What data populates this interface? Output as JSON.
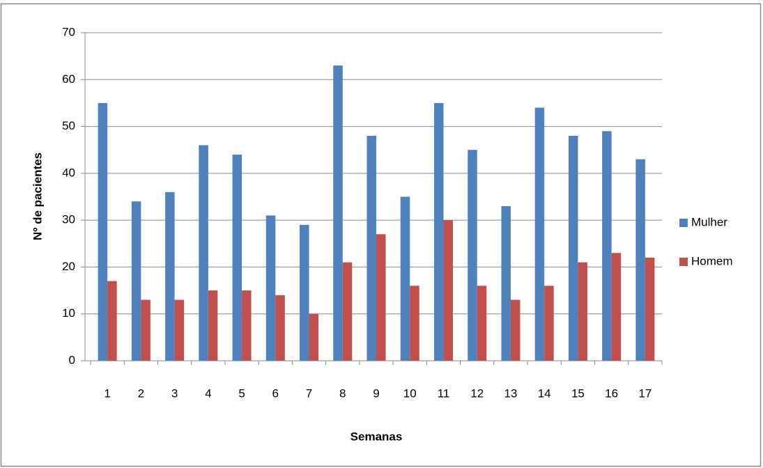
{
  "chart_data": {
    "type": "bar",
    "x_label": "Semanas",
    "y_label": "Nº de pacientes",
    "categories": [
      "1",
      "2",
      "3",
      "4",
      "5",
      "6",
      "7",
      "8",
      "9",
      "10",
      "11",
      "12",
      "13",
      "14",
      "15",
      "16",
      "17"
    ],
    "series": [
      {
        "name": "Mulher",
        "color": "#4F81BD",
        "values": [
          55,
          34,
          36,
          46,
          44,
          31,
          29,
          63,
          48,
          35,
          55,
          45,
          33,
          54,
          48,
          49,
          43
        ]
      },
      {
        "name": "Homem",
        "color": "#C0504D",
        "values": [
          17,
          13,
          13,
          15,
          15,
          14,
          10,
          21,
          27,
          16,
          30,
          16,
          13,
          16,
          21,
          23,
          22
        ]
      }
    ],
    "ylim": [
      0,
      70
    ],
    "yticks": [
      0,
      10,
      20,
      30,
      40,
      50,
      60,
      70
    ],
    "grid": true,
    "legend": "right"
  }
}
